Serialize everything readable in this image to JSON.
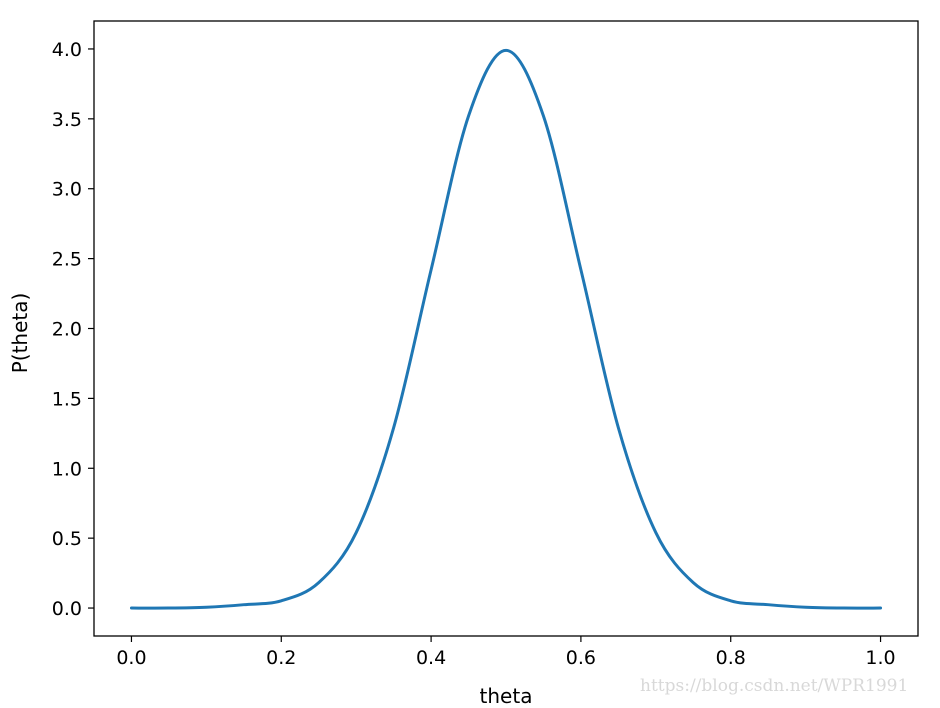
{
  "chart_data": {
    "type": "line",
    "title": "",
    "xlabel": "theta",
    "ylabel": "P(theta)",
    "xlim": [
      -0.05,
      1.05
    ],
    "ylim": [
      -0.2,
      4.2
    ],
    "xticks": [
      0.0,
      0.2,
      0.4,
      0.6,
      0.8,
      1.0
    ],
    "xtick_labels": [
      "0.0",
      "0.2",
      "0.4",
      "0.6",
      "0.8",
      "1.0"
    ],
    "yticks": [
      0.0,
      0.5,
      1.0,
      1.5,
      2.0,
      2.5,
      3.0,
      3.5,
      4.0
    ],
    "ytick_labels": [
      "0.0",
      "0.5",
      "1.0",
      "1.5",
      "2.0",
      "2.5",
      "3.0",
      "3.5",
      "4.0"
    ],
    "grid": false,
    "legend": "none",
    "series": [
      {
        "color": "#1f77b4",
        "x": [
          0.0,
          0.05,
          0.1,
          0.15,
          0.2,
          0.25,
          0.3,
          0.35,
          0.4,
          0.45,
          0.5,
          0.55,
          0.6,
          0.65,
          0.7,
          0.75,
          0.8,
          0.85,
          0.9,
          0.95,
          1.0
        ],
        "y": [
          0.0,
          0.0,
          0.006,
          0.024,
          0.052,
          0.182,
          0.54,
          1.29,
          2.42,
          3.52,
          3.99,
          3.52,
          2.42,
          1.29,
          0.54,
          0.182,
          0.052,
          0.024,
          0.006,
          0.0,
          0.0
        ]
      }
    ]
  },
  "watermark": "https://blog.csdn.net/WPR1991"
}
